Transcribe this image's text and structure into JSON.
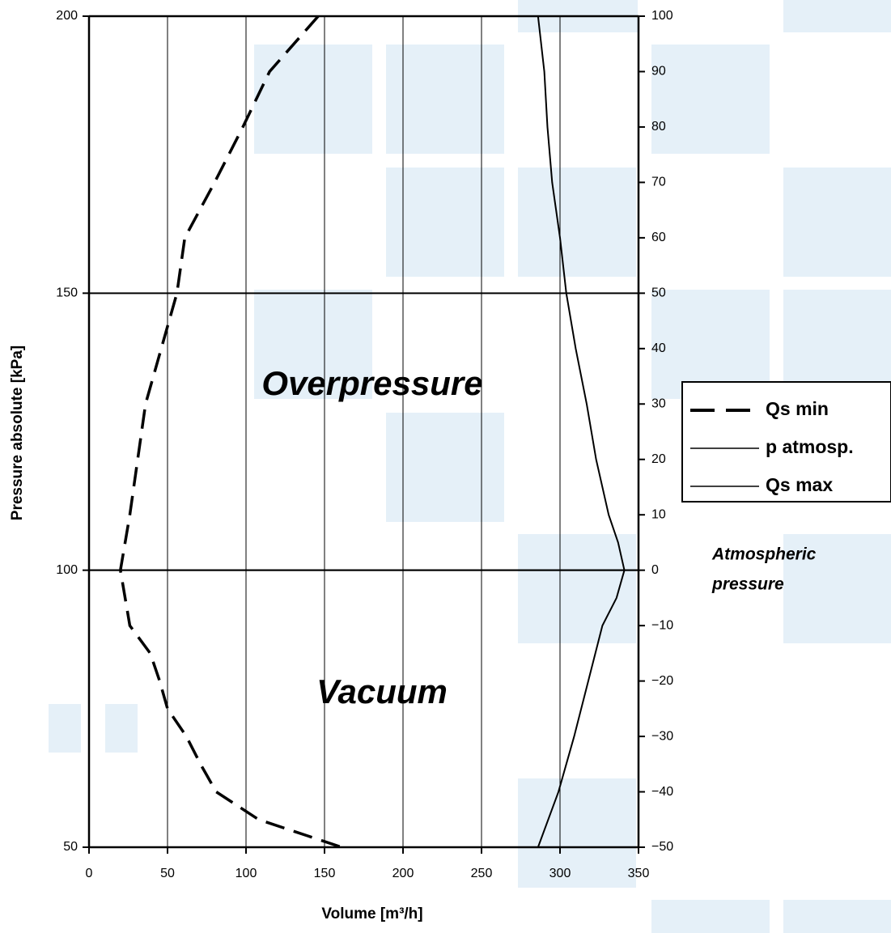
{
  "chart_data": {
    "type": "line",
    "x_label": "Volume [m³/h]",
    "y_label": "Pressure absolute [kPa]",
    "annotations": [
      "Overpressure",
      "Vacuum",
      "Atmospheric",
      "pressure"
    ],
    "xlim": [
      0,
      350
    ],
    "xticks": [
      0,
      50,
      100,
      150,
      200,
      250,
      300,
      350
    ],
    "ylim": [
      50,
      200
    ],
    "yticks": [
      50,
      100,
      150,
      200
    ],
    "y2lim": [
      -50,
      100
    ],
    "y2ticks": [
      {
        "value": -50,
        "label": "−50"
      },
      {
        "value": -40,
        "label": "−40"
      },
      {
        "value": -30,
        "label": "−30"
      },
      {
        "value": -20,
        "label": "−20"
      },
      {
        "value": -10,
        "label": "−10"
      },
      0,
      10,
      20,
      30,
      40,
      50,
      60,
      70,
      80,
      90,
      100
    ],
    "grid": true,
    "legend": "right",
    "series": [
      {
        "name": "Qs min",
        "color": "#000000",
        "dash": true,
        "x": [
          146,
          115,
          98,
          80,
          61,
          56,
          46,
          36,
          31,
          26,
          20,
          26,
          39,
          45,
          50,
          62,
          71,
          81,
          108,
          161
        ],
        "values": [
          200,
          190,
          180,
          170,
          160,
          150,
          140,
          130,
          120,
          110,
          100,
          90,
          85,
          80,
          75,
          70,
          65,
          60,
          55,
          50
        ]
      },
      {
        "name": "p atmosp.",
        "color": "#000000",
        "dash": false,
        "x": [
          0,
          350
        ],
        "values": [
          100,
          100
        ]
      },
      {
        "name": "Qs max",
        "color": "#000000",
        "dash": false,
        "x": [
          286,
          290,
          292,
          295,
          300,
          304,
          310,
          317,
          323,
          331,
          337,
          341,
          336,
          327,
          318,
          309,
          299,
          286
        ],
        "values": [
          200,
          190,
          180,
          170,
          160,
          150,
          140,
          130,
          120,
          110,
          105,
          100,
          95,
          90,
          80,
          70,
          60,
          50
        ]
      }
    ]
  }
}
